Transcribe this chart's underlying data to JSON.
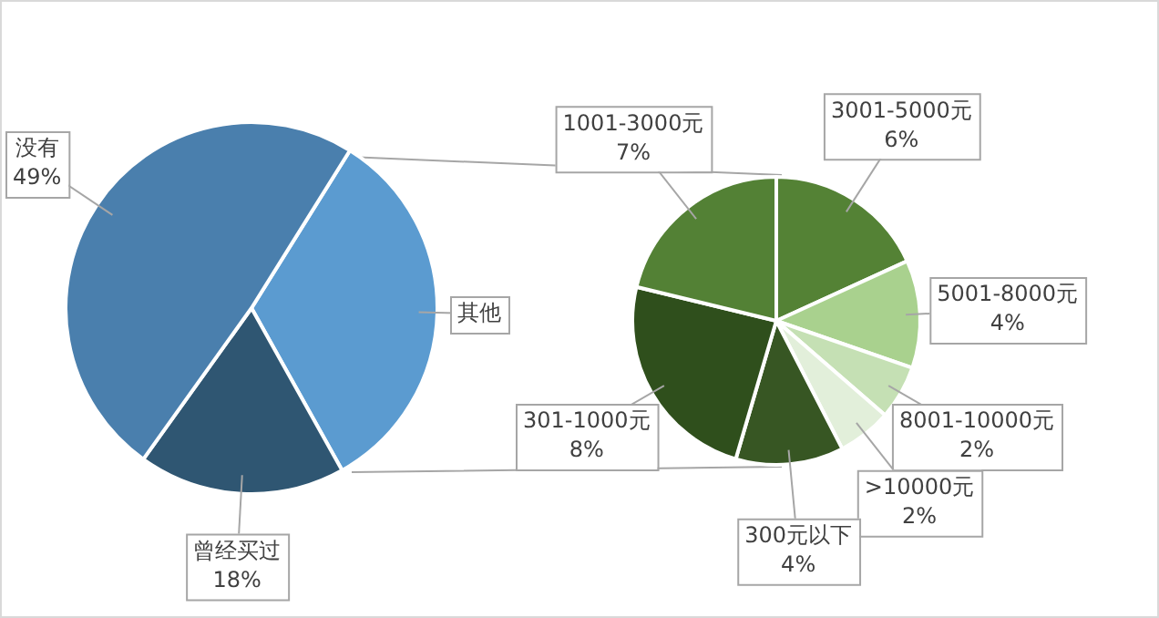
{
  "chart_data": [
    {
      "type": "pie",
      "categories": [
        "其他",
        "曾经买过",
        "没有"
      ],
      "values": [
        33,
        18,
        49
      ],
      "value_labels": [
        null,
        "18%",
        "49%"
      ],
      "colors": [
        "#5b9bd0",
        "#2f5672",
        "#4a7fad"
      ]
    },
    {
      "type": "pie",
      "categories": [
        "3001-5000元",
        "5001-8000元",
        "8001-10000元",
        ">10000元",
        "300元以下",
        "301-1000元",
        "1001-3000元"
      ],
      "values": [
        6,
        4,
        2,
        2,
        4,
        8,
        7
      ],
      "value_labels": [
        "6%",
        "4%",
        "2%",
        "2%",
        "4%",
        "8%",
        "7%"
      ],
      "colors": [
        "#548235",
        "#a9d18e",
        "#c5e0b4",
        "#e2efda",
        "#375623",
        "#2f4f1c",
        "#538135"
      ]
    }
  ]
}
